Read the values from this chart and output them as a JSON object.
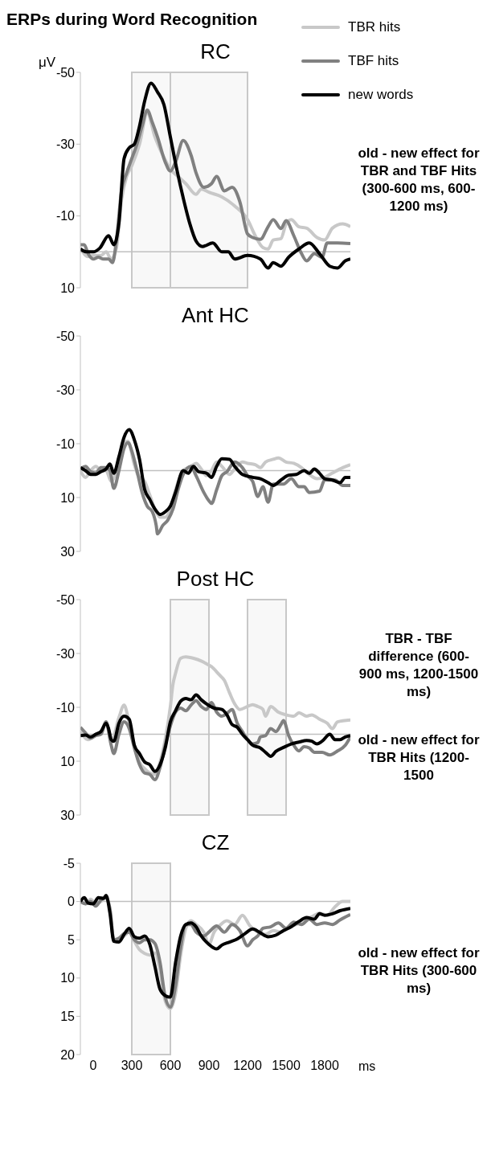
{
  "chart_data": [
    {
      "type": "line",
      "title": "ERPs during Word Recognition",
      "subtitle": "RC",
      "ylabel": "μV",
      "xlim": [
        -100,
        2000
      ],
      "xticks": [
        0,
        300,
        600,
        900,
        1200,
        1500,
        1800
      ],
      "ylim": [
        10,
        -50
      ],
      "yticks": [
        -50,
        -30,
        -10,
        10
      ],
      "tick_labels": "y",
      "legend": "top right",
      "marker": "none",
      "line_style": "solid",
      "bands": [
        {
          "axis": "x",
          "from": 300,
          "to": 600,
          "color": "#c8c8c8"
        },
        {
          "axis": "x",
          "from": 600,
          "to": 1200,
          "color": "#c8c8c8"
        }
      ],
      "ref_lines": [
        {
          "axis": "y",
          "value": 0,
          "color": "#c0c0c0"
        }
      ],
      "annotations": [
        "old - new effect for TBR and TBF Hits (300-600 ms, 600-1200 ms)"
      ],
      "series": [
        {
          "name": "TBR hits",
          "color": "#c8c8c8",
          "x": [
            -100,
            -40,
            0,
            60,
            100,
            140,
            180,
            220,
            260,
            300,
            360,
            420,
            480,
            540,
            600,
            660,
            720,
            800,
            840,
            900,
            1000,
            1100,
            1200,
            1260,
            1320,
            1360,
            1400,
            1460,
            1500,
            1540,
            1600,
            1660,
            1740,
            1800,
            1860,
            1940,
            2000
          ],
          "values": [
            -1,
            1.3,
            1,
            1,
            0,
            2,
            -1,
            -14.5,
            -21,
            -24,
            -30,
            -38.7,
            -32,
            -27,
            -23,
            -21,
            -19,
            -16,
            -17.5,
            -16.6,
            -15.3,
            -12.8,
            -9,
            -4.5,
            -1.2,
            -0.8,
            -3.3,
            -3.7,
            -7.8,
            -9,
            -7,
            -6.6,
            -4,
            -3.3,
            -6.6,
            -7.8,
            -7
          ]
        },
        {
          "name": "TBF hits",
          "color": "#808080",
          "x": [
            -100,
            -70,
            -40,
            0,
            40,
            80,
            120,
            150,
            180,
            220,
            260,
            300,
            340,
            380,
            420,
            460,
            500,
            560,
            600,
            640,
            700,
            760,
            800,
            860,
            920,
            960,
            1020,
            1080,
            1140,
            1200,
            1240,
            1300,
            1360,
            1400,
            1460,
            1500,
            1560,
            1620,
            1660,
            1720,
            1780,
            1820,
            1900,
            2000
          ],
          "values": [
            -2,
            -2,
            0.5,
            2,
            1.5,
            2,
            2,
            3,
            -3,
            -17,
            -22,
            -26,
            -30,
            -35,
            -39.5,
            -36,
            -32,
            -25,
            -22.5,
            -25,
            -31,
            -27,
            -22,
            -18,
            -19,
            -21,
            -17,
            -18,
            -14,
            -5,
            -4,
            -3.5,
            -7,
            -9,
            -6.5,
            -8.7,
            -4.5,
            0.5,
            2.5,
            0.5,
            1.5,
            -2.5,
            -2.5,
            -2.3
          ]
        },
        {
          "name": "new words",
          "color": "#000000",
          "x": [
            -100,
            -50,
            0,
            50,
            120,
            160,
            200,
            240,
            280,
            320,
            360,
            400,
            450,
            500,
            550,
            600,
            650,
            700,
            750,
            800,
            850,
            930,
            1000,
            1050,
            1100,
            1200,
            1300,
            1360,
            1400,
            1460,
            1520,
            1600,
            1680,
            1760,
            1840,
            1900,
            1960,
            2000
          ],
          "values": [
            -0.8,
            0,
            0,
            -1,
            -4.5,
            -2,
            -8,
            -26,
            -29,
            -30,
            -35,
            -42,
            -47,
            -44.5,
            -41,
            -32,
            -23,
            -15,
            -8,
            -3,
            -1.5,
            -2.5,
            0,
            0,
            2,
            1,
            2,
            4.5,
            3,
            4,
            1.5,
            -0.8,
            -2.5,
            0.5,
            4,
            4.5,
            2.5,
            2
          ]
        }
      ]
    },
    {
      "type": "line",
      "title": "Ant HC",
      "xlim": [
        -100,
        2000
      ],
      "xticks": [
        0,
        300,
        600,
        900,
        1200,
        1500,
        1800
      ],
      "ylim": [
        30,
        -50
      ],
      "yticks": [
        -50,
        -30,
        -10,
        10,
        30
      ],
      "tick_labels": "y",
      "legend": false,
      "marker": "none",
      "line_style": "solid",
      "ref_lines": [
        {
          "axis": "y",
          "value": 0,
          "color": "#c0c0c0"
        }
      ],
      "series": [
        {
          "color": "#c8c8c8",
          "x": [
            -100,
            -60,
            -20,
            20,
            60,
            100,
            140,
            200,
            240,
            270,
            320,
            350,
            400,
            440,
            480,
            520,
            560,
            600,
            640,
            700,
            760,
            800,
            840,
            880,
            920,
            960,
            1000,
            1060,
            1100,
            1160,
            1200,
            1260,
            1300,
            1340,
            1400,
            1440,
            1500,
            1560,
            1620,
            1680,
            1740,
            1800,
            1860,
            1940,
            2000
          ],
          "values": [
            0,
            2.5,
            0,
            -1.6,
            0,
            0,
            4,
            -3.2,
            -10.4,
            -10.9,
            -2.2,
            1.9,
            4,
            9.1,
            14.3,
            17.3,
            17.3,
            14.3,
            7.1,
            0,
            -1.6,
            -2.7,
            -0.6,
            1.9,
            0,
            -3.2,
            -1.6,
            1.4,
            -0.6,
            -3.2,
            -2.7,
            -2.2,
            -1.1,
            -3.2,
            -4.2,
            -4.7,
            -3.2,
            -2.7,
            -1.1,
            1.4,
            3,
            2.5,
            0.9,
            -1.1,
            -2.2
          ]
        },
        {
          "color": "#808080",
          "x": [
            -100,
            -60,
            -20,
            20,
            60,
            100,
            130,
            160,
            200,
            240,
            270,
            300,
            340,
            380,
            420,
            460,
            490,
            500,
            540,
            580,
            620,
            660,
            700,
            760,
            800,
            860,
            900,
            920,
            960,
            1000,
            1040,
            1100,
            1160,
            1200,
            1240,
            1280,
            1320,
            1360,
            1400,
            1480,
            1540,
            1600,
            1640,
            1680,
            1760,
            1800,
            1880,
            1940,
            2000
          ],
          "values": [
            -0.6,
            -1.6,
            0.4,
            0.9,
            -1.1,
            -1.1,
            0,
            6.6,
            0,
            -8.3,
            -10.4,
            -7.3,
            0,
            8.1,
            13.2,
            15.3,
            20.4,
            23.5,
            20.4,
            18.4,
            14.3,
            7.1,
            1.4,
            -1.6,
            1.9,
            8.1,
            11.2,
            12.2,
            7.1,
            1.9,
            0.4,
            -3.2,
            -1.1,
            1.9,
            4,
            9.6,
            6,
            11.7,
            5,
            5,
            3,
            6,
            6,
            8.1,
            7.6,
            3.5,
            3.5,
            5.5,
            5.5
          ]
        },
        {
          "color": "#000000",
          "x": [
            -100,
            -60,
            -20,
            20,
            60,
            100,
            130,
            160,
            200,
            240,
            280,
            320,
            360,
            400,
            440,
            480,
            520,
            560,
            600,
            640,
            700,
            740,
            780,
            820,
            880,
            920,
            960,
            1000,
            1060,
            1100,
            1160,
            1240,
            1300,
            1360,
            1400,
            1460,
            1520,
            1580,
            1640,
            1680,
            1720,
            1760,
            1800,
            1860,
            1920,
            1960,
            2000
          ],
          "values": [
            -1.1,
            0,
            1.4,
            1.4,
            0.4,
            -0.6,
            -2.5,
            1,
            -5.2,
            -12.4,
            -15.2,
            -11.4,
            -4.2,
            7,
            10.7,
            14.3,
            16.3,
            15.3,
            13.2,
            8.1,
            0,
            1,
            -1.6,
            0.4,
            0.9,
            2.5,
            -1.6,
            -4.4,
            -4.2,
            -1.6,
            1.4,
            2.5,
            3,
            4.5,
            5.5,
            3.5,
            1.7,
            1.4,
            0,
            1,
            -0.6,
            1,
            3,
            3.5,
            4.5,
            2.5,
            2.5
          ]
        }
      ]
    },
    {
      "type": "line",
      "title": "Post HC",
      "xlim": [
        -100,
        2000
      ],
      "xticks": [
        0,
        300,
        600,
        900,
        1200,
        1500,
        1800
      ],
      "ylim": [
        30,
        -50
      ],
      "yticks": [
        -50,
        -30,
        -10,
        10,
        30
      ],
      "tick_labels": "y",
      "legend": false,
      "marker": "none",
      "line_style": "solid",
      "bands": [
        {
          "axis": "x",
          "from": 600,
          "to": 900,
          "color": "#c8c8c8"
        },
        {
          "axis": "x",
          "from": 1200,
          "to": 1500,
          "color": "#c8c8c8"
        }
      ],
      "ref_lines": [
        {
          "axis": "y",
          "value": 0,
          "color": "#c0c0c0"
        }
      ],
      "annotations": [
        "TBR - TBF difference (600-900 ms, 1200-1500 ms)",
        "old - new effect  for TBR Hits (1200-1500"
      ],
      "series": [
        {
          "color": "#c8c8c8",
          "x": [
            -100,
            -40,
            20,
            60,
            100,
            140,
            200,
            240,
            280,
            320,
            360,
            400,
            440,
            480,
            520,
            560,
            600,
            620,
            640,
            680,
            720,
            780,
            840,
            880,
            920,
            980,
            1020,
            1060,
            1100,
            1140,
            1200,
            1240,
            1280,
            1320,
            1340,
            1380,
            1440,
            1500,
            1560,
            1600,
            1660,
            1700,
            1760,
            1820,
            1860,
            1900,
            2000
          ],
          "values": [
            -1,
            2,
            0,
            -1,
            -4.6,
            2.6,
            -6.2,
            -10.8,
            -4.1,
            4.1,
            10.3,
            12.8,
            14.4,
            14.9,
            10.3,
            2,
            -10.3,
            -18.5,
            -22.6,
            -28.2,
            -28.7,
            -28.2,
            -27.2,
            -26.2,
            -25.1,
            -22.1,
            -20,
            -15.4,
            -11.3,
            -9.2,
            -10.3,
            -11,
            -10.3,
            -9.2,
            -6.7,
            -10.3,
            -8.2,
            -7.2,
            -6.7,
            -8,
            -6.7,
            -7.2,
            -5.6,
            -4.1,
            -2.1,
            -4.6,
            -5.3
          ]
        },
        {
          "color": "#808080",
          "x": [
            -100,
            -60,
            -20,
            20,
            60,
            100,
            140,
            160,
            200,
            240,
            280,
            320,
            360,
            400,
            440,
            480,
            520,
            560,
            600,
            640,
            680,
            720,
            760,
            800,
            840,
            880,
            920,
            960,
            1000,
            1040,
            1080,
            1120,
            1160,
            1200,
            1240,
            1280,
            1300,
            1340,
            1380,
            1420,
            1460,
            1480,
            1520,
            1560,
            1600,
            1640,
            1680,
            1720,
            1780,
            1840,
            1900,
            1960,
            2000
          ],
          "values": [
            -2.6,
            -0.5,
            1.5,
            0.5,
            0,
            -4.6,
            4.1,
            7.2,
            0,
            -4.6,
            -2.1,
            5.1,
            11.3,
            14.4,
            14.9,
            16.9,
            12.3,
            4.1,
            -3.1,
            -8.2,
            -9.7,
            -8.7,
            -10.8,
            -12.5,
            -10.3,
            -9.2,
            -11.8,
            -8.2,
            -6.7,
            -7.7,
            -9.2,
            -4.1,
            -1,
            2,
            3.6,
            3.1,
            1,
            0.5,
            -2.1,
            -1,
            -3.6,
            -5.1,
            0.5,
            4.1,
            6.2,
            4.6,
            5.1,
            6.7,
            6.7,
            7.7,
            6.2,
            4.1,
            1
          ]
        },
        {
          "color": "#000000",
          "x": [
            -100,
            -60,
            -20,
            20,
            60,
            100,
            120,
            140,
            160,
            200,
            240,
            280,
            320,
            360,
            400,
            440,
            480,
            520,
            560,
            600,
            640,
            680,
            720,
            760,
            800,
            840,
            880,
            940,
            1000,
            1040,
            1080,
            1120,
            1160,
            1200,
            1240,
            1300,
            1340,
            1380,
            1420,
            1480,
            1540,
            1600,
            1660,
            1700,
            1740,
            1780,
            1840,
            1880,
            1920,
            1960,
            2000
          ],
          "values": [
            0.5,
            0.3,
            1,
            0,
            -1,
            -4.1,
            -2,
            2,
            2.6,
            -4.1,
            -6.7,
            -5.6,
            4.1,
            7.2,
            10.3,
            11.3,
            13.8,
            11.3,
            5.1,
            -4.6,
            -8.7,
            -12.3,
            -13.3,
            -12.8,
            -14.6,
            -12.8,
            -11.3,
            -9.7,
            -9.2,
            -7.2,
            -3.6,
            -2.6,
            0,
            2,
            4.1,
            5.1,
            6.7,
            8.2,
            6.4,
            4.9,
            3.6,
            2.9,
            2.3,
            2.6,
            3.6,
            2.6,
            0,
            2,
            2,
            1,
            0.5
          ]
        }
      ]
    },
    {
      "type": "line",
      "title": "CZ",
      "xlabel": "ms",
      "xlim": [
        -100,
        2000
      ],
      "xticks": [
        0,
        300,
        600,
        900,
        1200,
        1500,
        1800
      ],
      "ylim": [
        20,
        -5
      ],
      "yticks": [
        -5,
        0,
        5,
        10,
        15,
        20
      ],
      "legend": false,
      "marker": "none",
      "line_style": "solid",
      "bands": [
        {
          "axis": "x",
          "from": 300,
          "to": 600,
          "color": "#c8c8c8"
        }
      ],
      "ref_lines": [
        {
          "axis": "y",
          "value": 0,
          "color": "#c0c0c0"
        }
      ],
      "annotations": [
        "old - new effect for TBR Hits (300-600 ms)"
      ],
      "series": [
        {
          "color": "#c8c8c8",
          "x": [
            -100,
            -60,
            -20,
            20,
            60,
            100,
            130,
            160,
            200,
            240,
            280,
            320,
            360,
            400,
            440,
            480,
            520,
            560,
            600,
            640,
            680,
            720,
            760,
            800,
            860,
            900,
            940,
            980,
            1040,
            1100,
            1160,
            1220,
            1280,
            1340,
            1400,
            1460,
            1520,
            1580,
            1640,
            1700,
            1760,
            1820,
            1880,
            1940,
            2000
          ],
          "values": [
            0,
            0.3,
            -0.3,
            0.3,
            0,
            -0.5,
            1,
            5,
            5,
            4.5,
            4,
            5.2,
            6.3,
            6.8,
            7,
            6.7,
            9,
            13,
            14,
            12,
            7,
            3.5,
            2.5,
            3,
            4,
            5.6,
            4,
            3.2,
            2.5,
            3,
            1.8,
            3.2,
            4,
            4.3,
            3.8,
            4,
            3.3,
            3,
            2.3,
            2,
            1.5,
            1.8,
            0.7,
            0,
            0
          ]
        },
        {
          "color": "#808080",
          "x": [
            -100,
            -60,
            -20,
            20,
            60,
            100,
            130,
            160,
            200,
            240,
            280,
            320,
            360,
            400,
            440,
            480,
            520,
            560,
            600,
            640,
            680,
            720,
            760,
            800,
            860,
            900,
            960,
            1020,
            1080,
            1140,
            1200,
            1240,
            1280,
            1320,
            1380,
            1440,
            1500,
            1560,
            1620,
            1680,
            1740,
            1800,
            1860,
            1920,
            2000
          ],
          "values": [
            0,
            0.3,
            0,
            0.6,
            -0.2,
            -0.5,
            1,
            5,
            4.8,
            4.2,
            4,
            5,
            5.4,
            5,
            5,
            5.5,
            8,
            12.5,
            13.8,
            11,
            6,
            3,
            3,
            4,
            4.5,
            4,
            3.2,
            4,
            3,
            3.8,
            5.8,
            5,
            4.5,
            3.5,
            3.3,
            2.8,
            3.5,
            2.7,
            3,
            2.3,
            3,
            2.8,
            3,
            2.4,
            1.7
          ]
        },
        {
          "color": "#000000",
          "x": [
            -100,
            -70,
            -40,
            0,
            40,
            80,
            100,
            130,
            160,
            200,
            240,
            280,
            320,
            360,
            400,
            440,
            480,
            520,
            560,
            600,
            640,
            680,
            720,
            760,
            800,
            840,
            900,
            960,
            1000,
            1060,
            1120,
            1180,
            1240,
            1300,
            1360,
            1420,
            1480,
            1540,
            1600,
            1660,
            1720,
            1760,
            1800,
            1860,
            1920,
            2000
          ],
          "values": [
            0,
            -0.5,
            0.2,
            0.3,
            -0.5,
            -0.4,
            -0.8,
            1.5,
            5.2,
            5.3,
            4.3,
            3.5,
            4.6,
            4.8,
            4.5,
            5.6,
            8.5,
            11.5,
            12.3,
            12.5,
            8,
            4.5,
            3,
            2.8,
            3.3,
            4.5,
            5.6,
            6.2,
            5.7,
            5.3,
            4.9,
            4.2,
            3.6,
            4.1,
            4.6,
            4.4,
            3.8,
            3.3,
            2.6,
            2.1,
            2.3,
            1.6,
            1.8,
            1.6,
            1.2,
            0.9
          ]
        }
      ]
    }
  ]
}
